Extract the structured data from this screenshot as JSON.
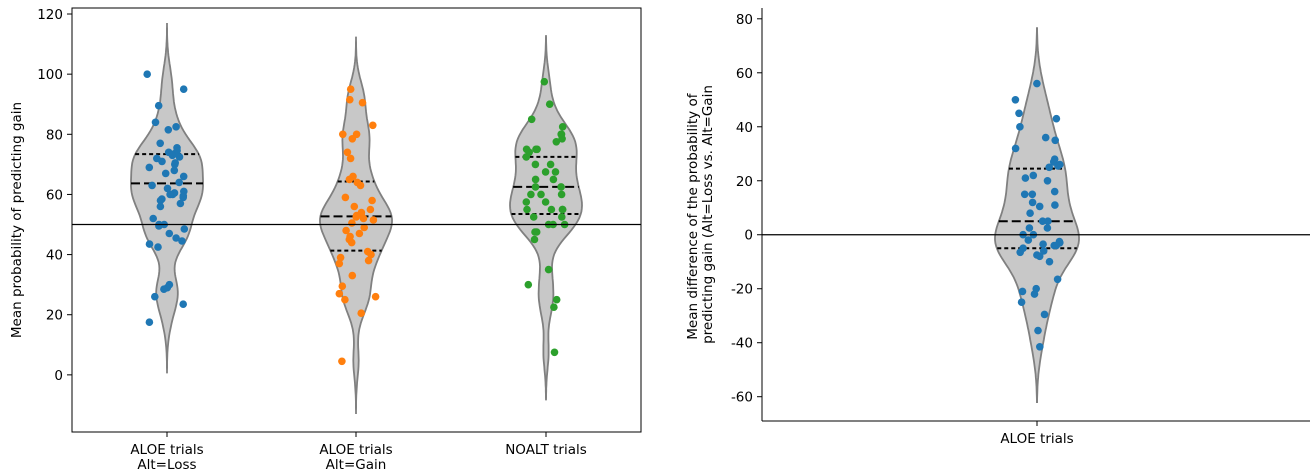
{
  "chart_data": [
    {
      "type": "violin",
      "ylabel": "Mean probability of predicting gain",
      "xlabel": "",
      "ylim": [
        -19,
        122
      ],
      "yticks": [
        0,
        20,
        40,
        60,
        80,
        100,
        120
      ],
      "reference_line": 50,
      "categories": [
        {
          "label_lines": [
            "ALOE trials",
            "Alt=Loss"
          ],
          "violin_range": [
            0.5,
            117
          ],
          "quartiles": {
            "q1": 63.7,
            "median": 63.7,
            "q3": 73.4
          },
          "quartile_lines": [
            73.4,
            63.7
          ],
          "color": "#1f77b4",
          "points": [
            100,
            95,
            89.5,
            84,
            82.5,
            81.5,
            77,
            75.5,
            74.5,
            74,
            73.5,
            73,
            72.5,
            72,
            71,
            70.5,
            70,
            69,
            68,
            67,
            66,
            64,
            63,
            62,
            61,
            60.5,
            60,
            60,
            59.5,
            59,
            58.5,
            58,
            57,
            56,
            52,
            50,
            50,
            49.5,
            48.5,
            47,
            45.5,
            44.5,
            43.5,
            42.5,
            30,
            29,
            28.5,
            26,
            23.5,
            17.5
          ]
        },
        {
          "label_lines": [
            "ALOE trials",
            "Alt=Gain"
          ],
          "violin_range": [
            -13,
            112.5
          ],
          "quartiles": {
            "q1": 41.3,
            "median": 52.7,
            "q3": 64.3
          },
          "quartile_lines": [
            64.3,
            52.7,
            41.3
          ],
          "color": "#ff7f0e",
          "points": [
            95,
            91.5,
            90.5,
            83,
            80,
            80,
            78.5,
            74,
            72,
            66,
            65,
            64,
            63,
            59,
            58,
            56,
            55,
            54,
            53.5,
            53,
            52.5,
            52,
            51.5,
            50.5,
            49,
            48,
            47,
            46,
            45,
            44,
            41,
            40,
            39,
            38,
            37,
            33,
            29.5,
            27,
            26,
            25,
            20.5,
            4.5
          ]
        },
        {
          "label_lines": [
            "NOALT trials"
          ],
          "violin_range": [
            -8.5,
            113
          ],
          "quartiles": {
            "q1": 53.5,
            "median": 62.5,
            "q3": 72.5
          },
          "quartile_lines": [
            72.5,
            62.5,
            53.5
          ],
          "color": "#2ca02c",
          "points": [
            97.5,
            90,
            85,
            82.5,
            80,
            80,
            80,
            78.5,
            77.5,
            75,
            75,
            75,
            74,
            72.5,
            70,
            70,
            67.5,
            67.5,
            65,
            65,
            62.5,
            62.5,
            60,
            60,
            60,
            57.5,
            57.5,
            55,
            55,
            55,
            55,
            52.5,
            52.5,
            50,
            50,
            50,
            47.5,
            47.5,
            45,
            35,
            30,
            25,
            22.5,
            7.5
          ]
        }
      ]
    },
    {
      "type": "violin",
      "ylabel_lines": [
        "Mean difference of the probability of",
        "predicting gain (Alt=Loss vs. Alt=Gain"
      ],
      "xlabel": "",
      "ylim": [
        -69,
        84
      ],
      "yticks": [
        -60,
        -40,
        -20,
        0,
        20,
        40,
        60,
        80
      ],
      "reference_line": 0,
      "categories": [
        {
          "label_lines": [
            "ALOE trials"
          ],
          "violin_range": [
            -62,
            76.5
          ],
          "quartiles": {
            "q1": -5,
            "median": 5,
            "q3": 24.5
          },
          "quartile_lines": [
            24.5,
            5,
            -5
          ],
          "color": "#1f77b4",
          "points": [
            56,
            50,
            45,
            43,
            40,
            36,
            35,
            32,
            28,
            27,
            26,
            25.5,
            25,
            22,
            21,
            20,
            16,
            15,
            15,
            12,
            11,
            10.5,
            8,
            5,
            5,
            2.5,
            2.5,
            0,
            0,
            -2,
            -2.5,
            -3,
            -3.5,
            -4,
            -4,
            -5,
            -6,
            -6.5,
            -7.5,
            -8,
            -10,
            -16.5,
            -20,
            -21,
            -22,
            -25,
            -29.5,
            -35.5,
            -41.5
          ]
        }
      ]
    }
  ]
}
